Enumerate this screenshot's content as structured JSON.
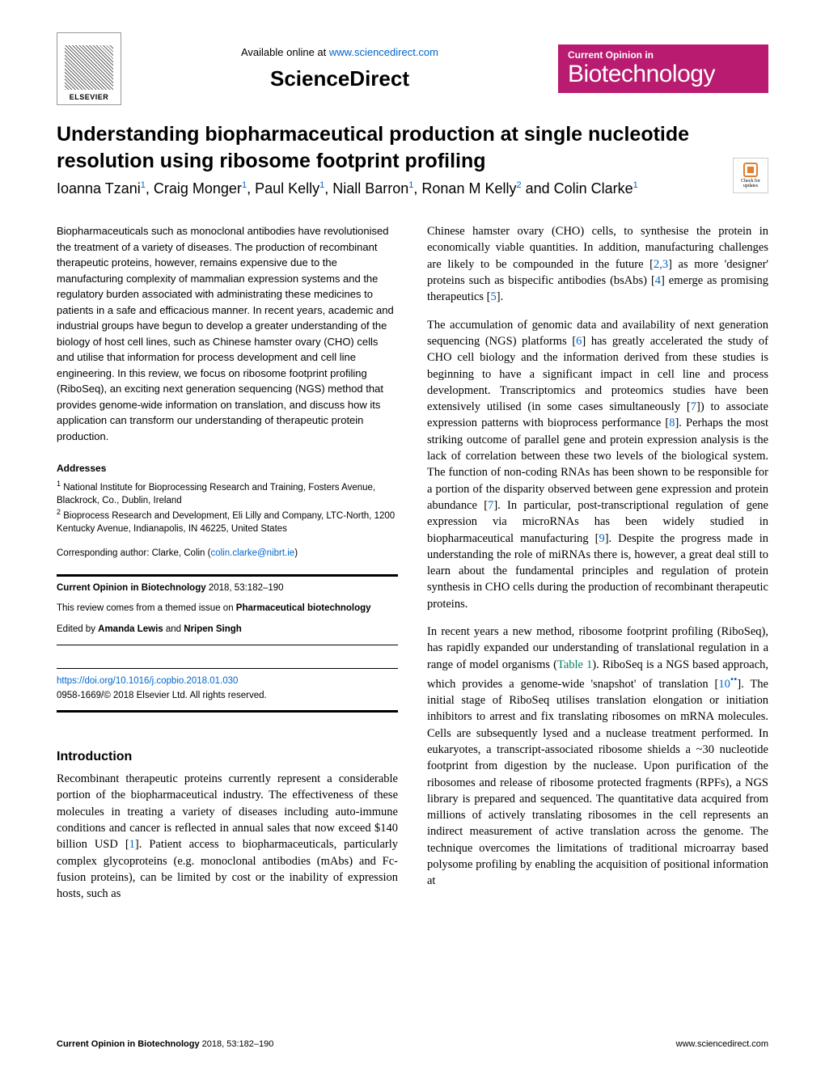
{
  "header": {
    "available_prefix": "Available online at ",
    "available_url": "www.sciencedirect.com",
    "sciencedirect": "ScienceDirect",
    "elsevier_label": "ELSEVIER",
    "badge_small": "Current Opinion in",
    "badge_large": "Biotechnology"
  },
  "article": {
    "title": "Understanding biopharmaceutical production at single nucleotide resolution using ribosome footprint profiling",
    "authors_html": "Ioanna Tzani<sup>1</sup>, Craig Monger<sup>1</sup>, Paul Kelly<sup>1</sup>, Niall Barron<sup>1</sup>, Ronan M Kelly<sup>2</sup> and Colin Clarke<sup>1</sup>",
    "check_updates": "Check for updates"
  },
  "abstract": "Biopharmaceuticals such as monoclonal antibodies have revolutionised the treatment of a variety of diseases. The production of recombinant therapeutic proteins, however, remains expensive due to the manufacturing complexity of mammalian expression systems and the regulatory burden associated with administrating these medicines to patients in a safe and efficacious manner. In recent years, academic and industrial groups have begun to develop a greater understanding of the biology of host cell lines, such as Chinese hamster ovary (CHO) cells and utilise that information for process development and cell line engineering. In this review, we focus on ribosome footprint profiling (RiboSeq), an exciting next generation sequencing (NGS) method that provides genome-wide information on translation, and discuss how its application can transform our understanding of therapeutic protein production.",
  "addresses": {
    "label": "Addresses",
    "addr1": "National Institute for Bioprocessing Research and Training, Fosters Avenue, Blackrock, Co., Dublin, Ireland",
    "addr2": "Bioprocess Research and Development, Eli Lilly and Company, LTC-North, 1200 Kentucky Avenue, Indianapolis, IN 46225, United States",
    "corresponding_prefix": "Corresponding author: Clarke, Colin (",
    "corresponding_email": "colin.clarke@nibrt.ie",
    "corresponding_suffix": ")"
  },
  "infobox": {
    "citation_journal": "Current Opinion in Biotechnology",
    "citation_rest": " 2018, 53:182–190",
    "themed_prefix": "This review comes from a themed issue on ",
    "themed_bold": "Pharmaceutical biotechnology",
    "edited_prefix": "Edited by ",
    "editor1": "Amanda Lewis",
    "editor_and": " and ",
    "editor2": "Nripen Singh",
    "doi": "https://doi.org/10.1016/j.copbio.2018.01.030",
    "copyright": "0958-1669/© 2018 Elsevier Ltd. All rights reserved."
  },
  "intro_heading": "Introduction",
  "col1_p1_pre": "Recombinant therapeutic proteins currently represent a considerable portion of the biopharmaceutical industry. The effectiveness of these molecules in treating a variety of diseases including auto-immune conditions and cancer is reflected in annual sales that now exceed $140 billion USD [",
  "ref1": "1",
  "col1_p1_post": "]. Patient access to biopharmaceuticals, particularly complex glycoproteins (e.g. monoclonal antibodies (mAbs) and Fc-fusion proteins), can be limited by cost or the inability of expression hosts, such as",
  "col2_p1_a": "Chinese hamster ovary (CHO) cells, to synthesise the protein in economically viable quantities. In addition, manufacturing challenges are likely to be compounded in the future [",
  "ref23": "2,3",
  "col2_p1_b": "] as more 'designer' proteins such as bispecific antibodies (bsAbs) [",
  "ref4": "4",
  "col2_p1_c": "] emerge as promising therapeutics [",
  "ref5": "5",
  "col2_p1_d": "].",
  "col2_p2_a": "The accumulation of genomic data and availability of next generation sequencing (NGS) platforms [",
  "ref6": "6",
  "col2_p2_b": "] has greatly accelerated the study of CHO cell biology and the information derived from these studies is beginning to have a significant impact in cell line and process development. Transcriptomics and proteomics studies have been extensively utilised (in some cases simultaneously [",
  "ref7": "7",
  "col2_p2_c": "]) to associate expression patterns with bioprocess performance [",
  "ref8": "8",
  "col2_p2_d": "]. Perhaps the most striking outcome of parallel gene and protein expression analysis is the lack of correlation between these two levels of the biological system. The function of non-coding RNAs has been shown to be responsible for a portion of the disparity observed between gene expression and protein abundance [",
  "col2_p2_e": "]. In particular, post-transcriptional regulation of gene expression via microRNAs has been widely studied in biopharmaceutical manufacturing [",
  "ref9": "9",
  "col2_p2_f": "]. Despite the progress made in understanding the role of miRNAs there is, however, a great deal still to learn about the fundamental principles and regulation of protein synthesis in CHO cells during the production of recombinant therapeutic proteins.",
  "col2_p3_a": "In recent years a new method, ribosome footprint profiling (RiboSeq), has rapidly expanded our understanding of translational regulation in a range of model organisms (",
  "table1": "Table 1",
  "col2_p3_b": "). RiboSeq is a NGS based approach, which provides a genome-wide 'snapshot' of translation [",
  "ref10": "10",
  "ref10_dots": "••",
  "col2_p3_c": "]. The initial stage of RiboSeq utilises translation elongation or initiation inhibitors to arrest and fix translating ribosomes on mRNA molecules. Cells are subsequently lysed and a nuclease treatment performed. In eukaryotes, a transcript-associated ribosome shields a ~30 nucleotide footprint from digestion by the nuclease. Upon purification of the ribosomes and release of ribosome protected fragments (RPFs), a NGS library is prepared and sequenced. The quantitative data acquired from millions of actively translating ribosomes in the cell represents an indirect measurement of active translation across the genome. The technique overcomes the limitations of traditional microarray based polysome profiling by enabling the acquisition of positional information at",
  "footer": {
    "left_bold": "Current Opinion in Biotechnology",
    "left_rest": " 2018, 53:182–190",
    "right": "www.sciencedirect.com"
  },
  "colors": {
    "link": "#0066cc",
    "badge_bg": "#b81b6f",
    "badge_text": "#ffffff",
    "green": "#008060",
    "text": "#000000",
    "bg": "#ffffff"
  }
}
